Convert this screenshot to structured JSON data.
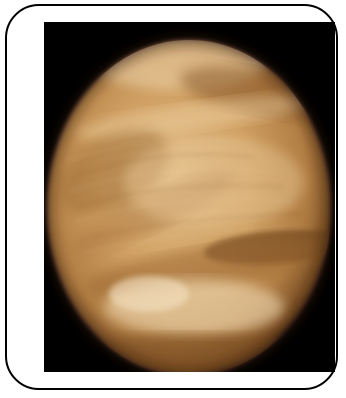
{
  "image": {
    "subject": "planet-venus",
    "background_color": "#000000",
    "frame_border_color": "#000000",
    "planet_colors": {
      "light": "#e8c99a",
      "mid": "#c79758",
      "dark": "#8d5f2f",
      "edge": "#4a2a10"
    }
  }
}
